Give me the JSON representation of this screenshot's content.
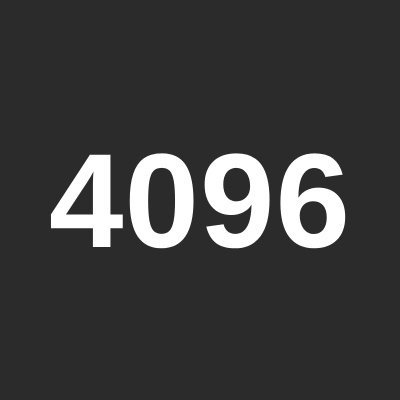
{
  "tile": {
    "value": "4096",
    "background_color": "#2b2b2b",
    "text_color": "#ffffff"
  }
}
